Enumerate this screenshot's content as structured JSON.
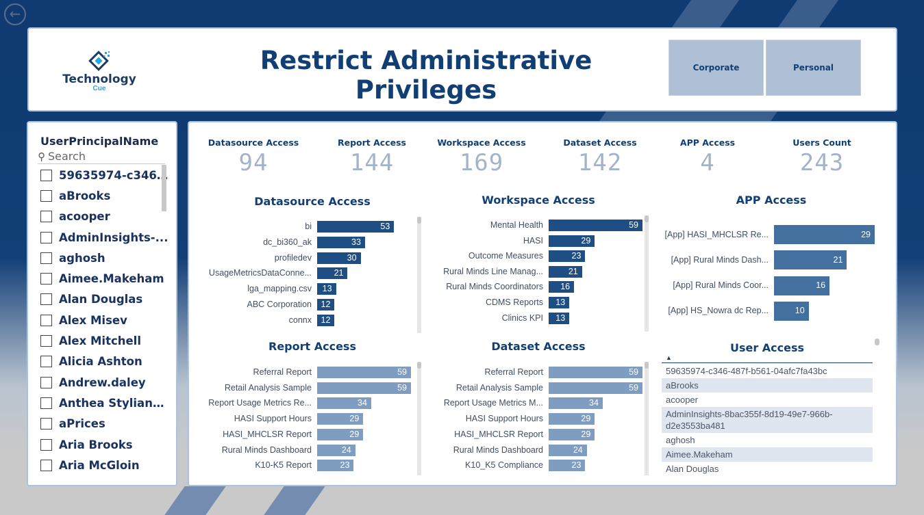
{
  "header": {
    "title": "Restrict Administrative Privileges",
    "logo_main": "Technology",
    "logo_sub": "Cue",
    "nav_buttons": [
      "Corporate",
      "Personal"
    ]
  },
  "slicer": {
    "title": "UserPrincipalName",
    "search_placeholder": "Search",
    "items": [
      "59635974-c346-...",
      "aBrooks",
      "acooper",
      "AdminInsights-...",
      "aghosh",
      "Aimee.Makeham",
      "Alan Douglas",
      "Alex Misev",
      "Alex Mitchell",
      "Alicia Ashton",
      "Andrew.daley",
      "Anthea Stylianakis",
      "aPrices",
      "Aria Brooks",
      "Aria McGloin"
    ]
  },
  "kpis": [
    {
      "label": "Datasource Access",
      "value": "94"
    },
    {
      "label": "Report Access",
      "value": "144"
    },
    {
      "label": "Workspace Access",
      "value": "169"
    },
    {
      "label": "Dataset Access",
      "value": "142"
    },
    {
      "label": "APP Access",
      "value": "4"
    },
    {
      "label": "Users Count",
      "value": "243"
    }
  ],
  "colors": {
    "dark_bar": "#1f4e85",
    "mid_bar": "#44709f",
    "light_bar": "#7f9dc0",
    "title": "#123f73"
  },
  "chart_data": [
    {
      "type": "bar",
      "title": "Datasource Access",
      "categories": [
        "bi",
        "dc_bi360_ak",
        "profiledev",
        "UsageMetricsDataConne...",
        "lga_mapping.csv",
        "ABC Corporation",
        "connx"
      ],
      "values": [
        53,
        33,
        30,
        21,
        13,
        12,
        12
      ]
    },
    {
      "type": "bar",
      "title": "Workspace Access",
      "categories": [
        "Mental Health",
        "HASI",
        "Outcome Measures",
        "Rural Minds Line Manag...",
        "Rural Minds Coordinators",
        "CDMS Reports",
        "Clinics KPI"
      ],
      "values": [
        59,
        29,
        23,
        21,
        16,
        13,
        13
      ]
    },
    {
      "type": "bar",
      "title": "APP Access",
      "categories": [
        "[App] HASI_MHCLSR Re...",
        "[App] Rural Minds Dash...",
        "[App] Rural Minds Coor...",
        "[App] HS_Nowra dc Rep..."
      ],
      "values": [
        29,
        21,
        16,
        10
      ]
    },
    {
      "type": "bar",
      "title": "Report Access",
      "categories": [
        "Referral Report",
        "Retail Analysis Sample",
        "Report Usage Metrics Re...",
        "HASI Support Hours",
        "HASI_MHCLSR Report",
        "Rural Minds Dashboard",
        "K10-K5 Report"
      ],
      "values": [
        59,
        59,
        34,
        29,
        29,
        24,
        23
      ]
    },
    {
      "type": "bar",
      "title": "Dataset Access",
      "categories": [
        "Referral Report",
        "Retail Analysis Sample",
        "Report Usage Metrics M...",
        "HASI Support Hours",
        "HASI_MHCLSR Report",
        "Rural Minds Dashboard",
        "K10_K5 Compliance"
      ],
      "values": [
        59,
        59,
        34,
        29,
        29,
        24,
        23
      ]
    }
  ],
  "user_access": {
    "title": "User Access",
    "rows": [
      "59635974-c346-487f-b561-04afc7fa43bc",
      "aBrooks",
      "acooper",
      "AdminInsights-8bac355f-8d19-49e7-966b-d2e3553ba481",
      "aghosh",
      "Aimee.Makeham",
      "Alan Douglas"
    ]
  }
}
